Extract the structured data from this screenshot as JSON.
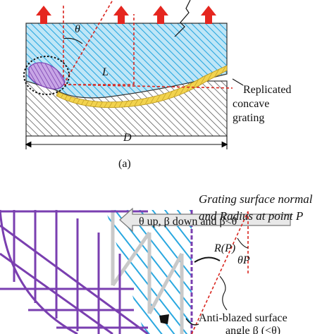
{
  "panel_a": {
    "theta": "θ",
    "L": "L",
    "replicated_line1": "Replicated",
    "replicated_line2": "concave",
    "replicated_line3": "grating",
    "D": "D",
    "caption": "(a)"
  },
  "panel_b": {
    "arrow_text": "θ up, β down and β<θ",
    "normal_line1": "Grating surface normal",
    "normal_line2": "and Radius at point P",
    "R_label": "R(P)",
    "theta_p": "θP",
    "anti_line1": "Anti-blazed surface",
    "anti_line2": "angle β (<θ)"
  },
  "colors": {
    "substrate_blue": "#3fb6e8",
    "hatch_dark": "#555555",
    "grating_gold": "#e6c23a",
    "defect_purple": "#7a3fb0",
    "arrow_red": "#e5261f",
    "dash_red": "#d9261f"
  }
}
